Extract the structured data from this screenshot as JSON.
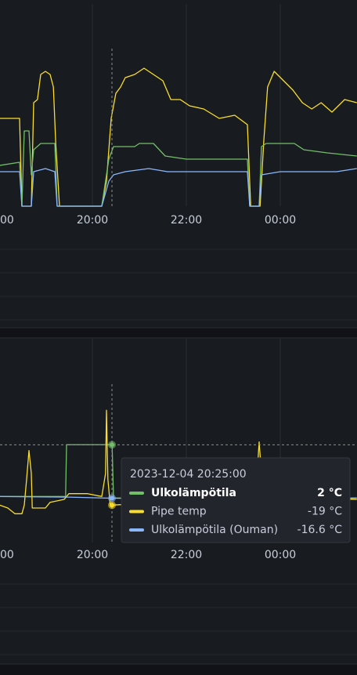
{
  "chart_data": [
    {
      "type": "line",
      "xlim": [
        18.033,
        25.633
      ],
      "ylim": [
        0,
        60
      ],
      "xticks": [
        {
          "value": 18,
          "label": "00"
        },
        {
          "value": 20,
          "label": "20:00"
        },
        {
          "value": 22,
          "label": "22:00"
        },
        {
          "value": 24,
          "label": "00:00"
        }
      ],
      "series": [
        {
          "color": "#fade2a",
          "x": [
            18.03,
            18.45,
            18.5,
            18.7,
            18.75,
            18.83,
            18.9,
            19.0,
            19.1,
            19.17,
            19.22,
            19.3,
            20.2,
            20.3,
            20.4,
            20.5,
            20.6,
            20.7,
            20.9,
            21.1,
            21.3,
            21.5,
            21.67,
            21.87,
            22.07,
            22.37,
            22.7,
            23.03,
            23.3,
            23.37,
            23.57,
            23.65,
            23.73,
            23.87,
            24.07,
            24.27,
            24.47,
            24.67,
            24.87,
            25.1,
            25.37,
            25.63
          ],
          "values": [
            28,
            28,
            0,
            0,
            33,
            34,
            42,
            43,
            42,
            38,
            20,
            0,
            0,
            8,
            28,
            36,
            38,
            41,
            42,
            44,
            42,
            40,
            34,
            34,
            32,
            31,
            28,
            29,
            26,
            0,
            0,
            21,
            38,
            43,
            40,
            37,
            33,
            31,
            33,
            30,
            34,
            33
          ]
        },
        {
          "color": "#73bf69",
          "x": [
            18.03,
            18.45,
            18.5,
            18.55,
            18.65,
            18.7,
            18.75,
            18.9,
            19.2,
            19.25,
            20.2,
            20.35,
            20.45,
            20.6,
            20.9,
            21.0,
            21.3,
            21.55,
            22.0,
            23.3,
            23.35,
            23.55,
            23.6,
            23.7,
            24.3,
            24.5,
            25.0,
            25.63
          ],
          "values": [
            13,
            14,
            0,
            24,
            24,
            10,
            18,
            20,
            20,
            0,
            0,
            15,
            19,
            19,
            19,
            20,
            20,
            16,
            15,
            15,
            0,
            0,
            19,
            20,
            20,
            18,
            17,
            16
          ]
        },
        {
          "color": "#8ab8ff",
          "x": [
            18.03,
            18.45,
            18.5,
            18.7,
            18.75,
            19.0,
            19.2,
            19.25,
            20.2,
            20.35,
            20.45,
            20.7,
            21.2,
            21.6,
            22.2,
            22.8,
            23.3,
            23.35,
            23.55,
            23.6,
            24.0,
            24.6,
            25.2,
            25.63
          ],
          "values": [
            11,
            11,
            0,
            0,
            11,
            12,
            11,
            0,
            0,
            8,
            10,
            11,
            12,
            11,
            11,
            11,
            11,
            0,
            0,
            10,
            11,
            11,
            11,
            12
          ]
        }
      ]
    },
    {
      "type": "line",
      "xlim": [
        18.033,
        25.633
      ],
      "ylim": [
        -32,
        34
      ],
      "xticks": [
        {
          "value": 18,
          "label": "00"
        },
        {
          "value": 20,
          "label": "20:00"
        },
        {
          "value": 22,
          "label": "22:00"
        },
        {
          "value": 24,
          "label": "00:00"
        }
      ],
      "series": [
        {
          "name": "Ulkolämpötila",
          "color": "#73bf69",
          "x": [
            18.03,
            19.43,
            19.45,
            20.42,
            20.45,
            25.63
          ],
          "values": [
            -16,
            -16,
            2,
            2,
            -16.5,
            -17
          ]
        },
        {
          "name": "Pipe temp",
          "color": "#fade2a",
          "x": [
            18.03,
            18.2,
            18.35,
            18.5,
            18.55,
            18.6,
            18.65,
            18.7,
            18.72,
            19.0,
            19.1,
            19.4,
            19.5,
            19.9,
            20.2,
            20.28,
            20.3,
            20.33,
            20.38,
            20.42,
            21.5,
            22.5,
            23.4,
            23.5,
            23.55,
            23.6,
            23.7,
            24.5,
            25.63
          ],
          "values": [
            -19,
            -20,
            -22,
            -22,
            -19,
            -10,
            0,
            -8,
            -20,
            -20,
            -18,
            -17,
            -15,
            -15,
            -16,
            -8,
            14,
            -10,
            -19,
            -19,
            -18,
            -17,
            -17,
            -10,
            3,
            -8,
            -16,
            -16,
            -17
          ]
        },
        {
          "name": "Ulkolämpötila (Ouman)",
          "color": "#8ab8ff",
          "x": [
            18.03,
            19.5,
            20.42,
            22.0,
            25.63
          ],
          "values": [
            -16,
            -16.2,
            -16.6,
            -16.8,
            -16.5
          ]
        }
      ],
      "tooltip": {
        "title": "2023-12-04 20:25:00",
        "x": 20.4167,
        "values": [
          2,
          -19,
          -16.6
        ],
        "value_labels": [
          "2 °C",
          "-19 °C",
          "-16.6 °C"
        ]
      }
    }
  ]
}
